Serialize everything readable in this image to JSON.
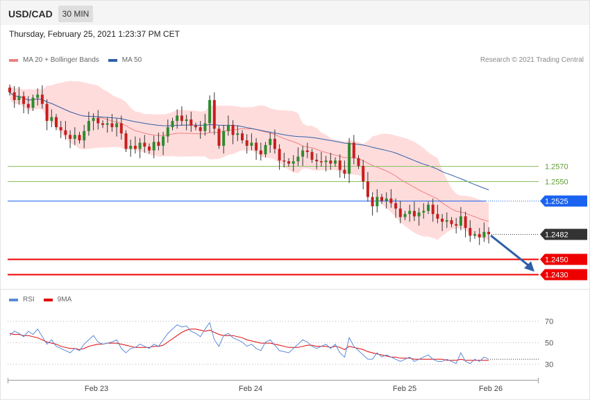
{
  "header": {
    "symbol": "USD/CAD",
    "timeframe": "30 MIN"
  },
  "datetime": "Thursday, February 25, 2021 1:23:37 PM CET",
  "legend": {
    "ma20": {
      "label": "MA 20 + Bollinger Bands",
      "color": "#f08080"
    },
    "ma50": {
      "label": "MA 50",
      "color": "#3060a8"
    },
    "rsi": {
      "label": "RSI",
      "color": "#5b8ad8"
    },
    "rsi_ma": {
      "label": "9MA",
      "color": "#e00000"
    }
  },
  "credit": "Research © 2021 Trading Central",
  "colors": {
    "up": "#2e8b2e",
    "down": "#c81e1e",
    "band": "#ffdcdc",
    "support": "#ee0000",
    "pivot": "#1a62f0",
    "resistance": "#8cc063",
    "last": "#333333",
    "arrow": "#2f5ea8"
  },
  "chart_data": [
    {
      "type": "candlestick",
      "title": "USD/CAD",
      "ylim": [
        1.2415,
        1.269
      ],
      "levels": [
        {
          "label": "1.2570",
          "value": 1.257,
          "kind": "resistance"
        },
        {
          "label": "1.2550",
          "value": 1.255,
          "kind": "resistance"
        },
        {
          "label": "1.2525",
          "value": 1.2525,
          "kind": "pivot"
        },
        {
          "label": "1.2482",
          "value": 1.2482,
          "kind": "last"
        },
        {
          "label": "1.2450",
          "value": 1.245,
          "kind": "support"
        },
        {
          "label": "1.2430",
          "value": 1.243,
          "kind": "support"
        }
      ],
      "close": [
        1.2665,
        1.2655,
        1.266,
        1.265,
        1.2645,
        1.2658,
        1.2662,
        1.265,
        1.2628,
        1.2633,
        1.262,
        1.2616,
        1.261,
        1.2605,
        1.261,
        1.2603,
        1.2615,
        1.2628,
        1.2632,
        1.2625,
        1.2623,
        1.2625,
        1.262,
        1.2625,
        1.2612,
        1.2592,
        1.2596,
        1.2592,
        1.26,
        1.2595,
        1.259,
        1.2601,
        1.2596,
        1.2608,
        1.262,
        1.2628,
        1.2635,
        1.2628,
        1.263,
        1.2622,
        1.262,
        1.2615,
        1.2625,
        1.2655,
        1.2618,
        1.2596,
        1.2615,
        1.2623,
        1.261,
        1.2612,
        1.2603,
        1.2596,
        1.26,
        1.259,
        1.2585,
        1.2597,
        1.2605,
        1.2592,
        1.2577,
        1.2576,
        1.2573,
        1.2576,
        1.2582,
        1.259,
        1.2588,
        1.2578,
        1.2576,
        1.2575,
        1.2577,
        1.2573,
        1.2577,
        1.2565,
        1.256,
        1.26,
        1.258,
        1.257,
        1.255,
        1.253,
        1.2518,
        1.253,
        1.2525,
        1.2528,
        1.2522,
        1.2515,
        1.2504,
        1.2508,
        1.2512,
        1.2505,
        1.251,
        1.2512,
        1.252,
        1.2508,
        1.2502,
        1.2498,
        1.25,
        1.2495,
        1.2493,
        1.2505,
        1.249,
        1.248,
        1.2482,
        1.2478,
        1.2485,
        1.2482
      ],
      "rsi": {
        "ylim": [
          20,
          80
        ],
        "levels": [
          70,
          50,
          30
        ],
        "rsi": [
          56,
          60,
          58,
          55,
          60,
          57,
          62,
          55,
          48,
          52,
          46,
          44,
          42,
          40,
          44,
          42,
          48,
          52,
          56,
          50,
          48,
          49,
          50,
          52,
          44,
          40,
          44,
          45,
          48,
          46,
          44,
          48,
          46,
          52,
          58,
          62,
          66,
          64,
          65,
          60,
          58,
          55,
          62,
          68,
          52,
          46,
          56,
          58,
          54,
          52,
          50,
          46,
          48,
          44,
          42,
          50,
          52,
          47,
          42,
          41,
          40,
          44,
          48,
          52,
          50,
          46,
          44,
          46,
          48,
          44,
          48,
          40,
          36,
          54,
          46,
          42,
          38,
          34,
          34,
          40,
          36,
          38,
          36,
          34,
          32,
          34,
          36,
          32,
          34,
          36,
          38,
          34,
          32,
          32,
          34,
          32,
          30,
          40,
          32,
          30,
          34,
          32,
          36,
          34
        ],
        "ma9": [
          58,
          57,
          57,
          56,
          56,
          55,
          54,
          52,
          50,
          49,
          48,
          46,
          45,
          44,
          44,
          43,
          44,
          46,
          47,
          48,
          48,
          49,
          49,
          49,
          48,
          47,
          46,
          45,
          45,
          45,
          45,
          46,
          46,
          47,
          50,
          53,
          56,
          59,
          61,
          62,
          62,
          61,
          60,
          61,
          59,
          57,
          56,
          56,
          56,
          55,
          54,
          52,
          51,
          50,
          49,
          49,
          49,
          48,
          47,
          46,
          45,
          45,
          45,
          46,
          47,
          47,
          46,
          46,
          46,
          45,
          46,
          45,
          43,
          46,
          45,
          44,
          43,
          41,
          40,
          39,
          38,
          37,
          36,
          36,
          35,
          35,
          35,
          34,
          34,
          34,
          34,
          34,
          34,
          34,
          33,
          33,
          33,
          34,
          33,
          33,
          33,
          33,
          33,
          33
        ]
      },
      "x_ticks": [
        "Feb 23",
        "Feb 24",
        "Feb 25",
        "Feb 26"
      ]
    }
  ]
}
